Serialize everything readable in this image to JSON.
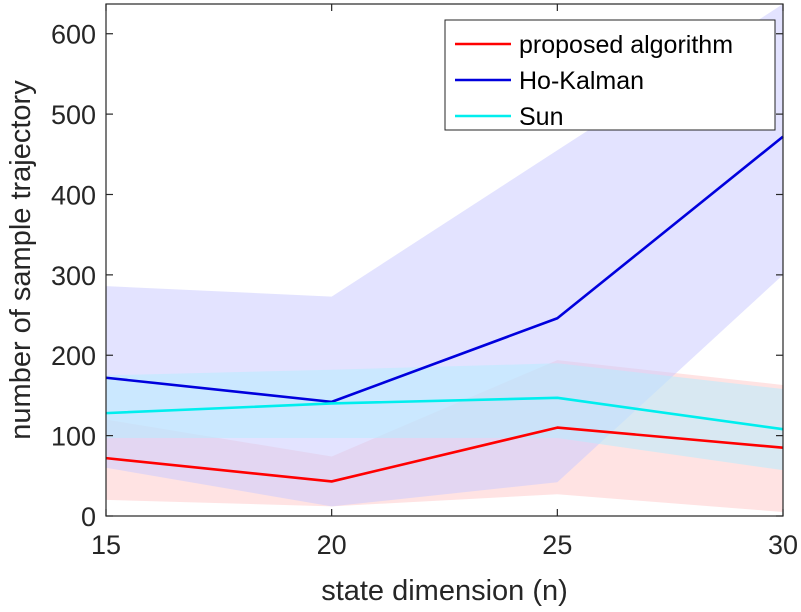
{
  "chart_data": {
    "type": "line",
    "title": "",
    "xlabel": "state dimension (n)",
    "ylabel": "number of sample trajectory",
    "x": [
      15,
      20,
      25,
      30
    ],
    "xlim": [
      15,
      30
    ],
    "ylim": [
      0,
      637
    ],
    "xticks": [
      15,
      20,
      25,
      30
    ],
    "yticks": [
      0,
      100,
      200,
      300,
      400,
      500,
      600
    ],
    "legend_position": "top-right",
    "grid": false,
    "series": [
      {
        "name": "proposed algorithm",
        "color": "#ff0000",
        "band_color": "#ffcccc",
        "values": [
          72,
          43,
          110,
          85
        ],
        "lower": [
          20,
          12,
          27,
          5
        ],
        "upper": [
          120,
          74,
          194,
          163
        ]
      },
      {
        "name": "Ho-Kalman",
        "color": "#0000dd",
        "band_color": "#ccccff",
        "values": [
          172,
          142,
          246,
          472
        ],
        "lower": [
          60,
          12,
          42,
          300
        ],
        "upper": [
          286,
          273,
          455,
          637
        ]
      },
      {
        "name": "Sun",
        "color": "#00eeee",
        "band_color": "#b8ecff",
        "values": [
          128,
          140,
          147,
          108
        ],
        "lower": [
          97,
          97,
          97,
          57
        ],
        "upper": [
          175,
          182,
          190,
          158
        ]
      }
    ]
  }
}
